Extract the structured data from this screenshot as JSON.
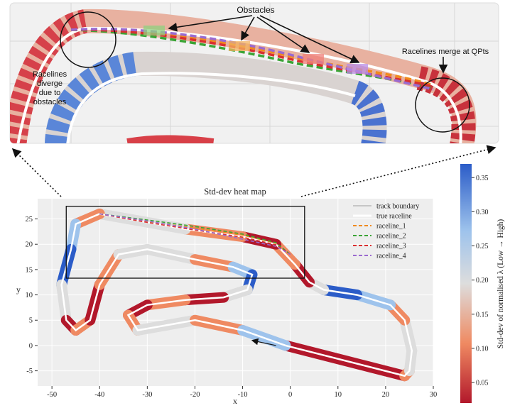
{
  "chart_data": {
    "type": "heatmap",
    "title": "Std-dev heat map",
    "xlabel": "x",
    "ylabel": "y",
    "xlim": [
      -53,
      30
    ],
    "ylim": [
      -8,
      29
    ],
    "xticks": [
      -50,
      -40,
      -30,
      -20,
      -10,
      0,
      10,
      20,
      30
    ],
    "yticks": [
      -5,
      0,
      5,
      10,
      15,
      20,
      25
    ],
    "grid": true,
    "legend_position": "top-right",
    "legend": [
      {
        "label": "track boundary",
        "color": "#b8b8b8",
        "style": "solid"
      },
      {
        "label": "true raceline",
        "color": "#ffffff",
        "style": "solid"
      },
      {
        "label": "raceline_1",
        "color": "#f08a1c",
        "style": "dashed"
      },
      {
        "label": "raceline_2",
        "color": "#3aa435",
        "style": "dashed"
      },
      {
        "label": "raceline_3",
        "color": "#d93030",
        "style": "dashed"
      },
      {
        "label": "raceline_4",
        "color": "#9a6ad0",
        "style": "dashed"
      }
    ],
    "colorbar": {
      "label": "Std-dev of normalised λ (Low → High)",
      "range": [
        0.02,
        0.37
      ],
      "ticks": [
        0.05,
        0.1,
        0.15,
        0.2,
        0.25,
        0.3,
        0.35
      ],
      "tick_labels": [
        "0.05",
        "0.10",
        "0.15",
        "0.20",
        "0.25",
        "0.30",
        "0.35"
      ],
      "colors": [
        "#b2182b",
        "#ef8a62",
        "#dddddd",
        "#9ec3ec",
        "#2b5cc8"
      ]
    },
    "zoom_box": {
      "x": [
        -47,
        3
      ],
      "y": [
        13.3,
        27.5
      ]
    },
    "raceline": [
      [
        -1,
        0
      ],
      [
        24,
        -6
      ],
      [
        25,
        -5
      ],
      [
        25.5,
        -1
      ],
      [
        24,
        5
      ],
      [
        21,
        8
      ],
      [
        14,
        10
      ],
      [
        7,
        11
      ],
      [
        4,
        12.5
      ],
      [
        1,
        16
      ],
      [
        -3,
        20
      ],
      [
        -10,
        21.5
      ],
      [
        -22,
        23
      ],
      [
        -34,
        25
      ],
      [
        -40,
        26
      ],
      [
        -45,
        24
      ],
      [
        -46,
        19
      ],
      [
        -48,
        12
      ],
      [
        -47,
        5
      ],
      [
        -45,
        3
      ],
      [
        -42,
        5
      ],
      [
        -40,
        12
      ],
      [
        -36,
        18
      ],
      [
        -30,
        19
      ],
      [
        -20,
        17
      ],
      [
        -12,
        15.5
      ],
      [
        -8,
        14
      ],
      [
        -9,
        11
      ],
      [
        -14,
        9.5
      ],
      [
        -22,
        9
      ],
      [
        -30,
        8
      ],
      [
        -34,
        6
      ],
      [
        -32,
        3
      ],
      [
        -26,
        4
      ],
      [
        -20,
        5
      ],
      [
        -10,
        3
      ],
      [
        -1,
        0
      ]
    ],
    "racelines": [
      {
        "name": "raceline_1",
        "points": [
          [
            -40,
            26
          ],
          [
            -30,
            24.5
          ],
          [
            -20,
            23.2
          ],
          [
            -10,
            21.8
          ],
          [
            -3,
            20.2
          ],
          [
            0,
            18
          ]
        ]
      },
      {
        "name": "raceline_2",
        "points": [
          [
            -40,
            26
          ],
          [
            -30,
            24.8
          ],
          [
            -20,
            23.5
          ],
          [
            -10,
            22
          ],
          [
            -3,
            20.3
          ],
          [
            0,
            18
          ]
        ]
      },
      {
        "name": "raceline_3",
        "points": [
          [
            -40,
            26
          ],
          [
            -30,
            24.3
          ],
          [
            -20,
            22.8
          ],
          [
            -10,
            21.4
          ],
          [
            -3,
            19.9
          ],
          [
            0,
            18
          ]
        ]
      },
      {
        "name": "raceline_4",
        "points": [
          [
            -40,
            26
          ],
          [
            -30,
            24.6
          ],
          [
            -20,
            23
          ],
          [
            -10,
            21
          ],
          [
            -3,
            19.6
          ],
          [
            0,
            18
          ]
        ]
      }
    ],
    "direction_arrow": {
      "from": [
        -3,
        0
      ],
      "to": [
        -8,
        1
      ]
    }
  },
  "annotations": {
    "obstacles": "Obstacles",
    "diverge": "Racelines\ndiverge\ndue to\nobstacles",
    "merge": "Racelines merge at QPts"
  }
}
